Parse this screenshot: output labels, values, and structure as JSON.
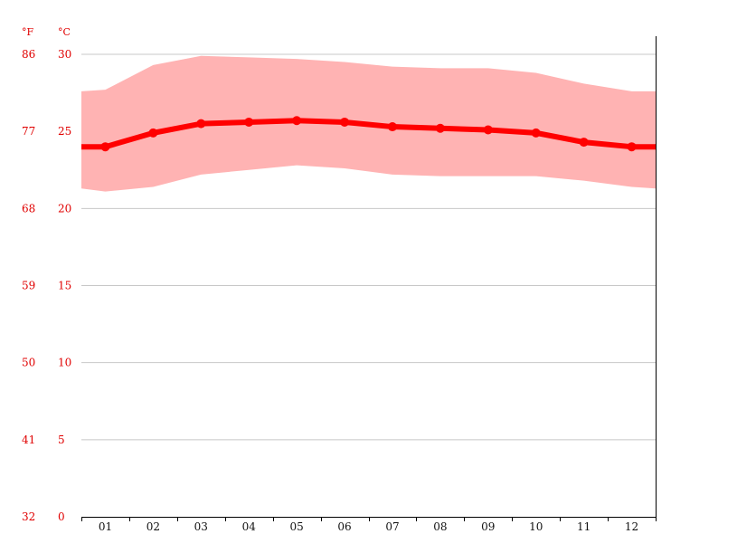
{
  "chart_data": {
    "type": "area",
    "title": "",
    "xlabel": "",
    "ylabel": "",
    "units": {
      "fahrenheit": "°F",
      "celsius": "°C"
    },
    "categories": [
      "01",
      "02",
      "03",
      "04",
      "05",
      "06",
      "07",
      "08",
      "09",
      "10",
      "11",
      "12"
    ],
    "y_celsius_ticks": [
      "0",
      "5",
      "10",
      "15",
      "20",
      "25",
      "30"
    ],
    "y_fahrenheit_ticks": [
      "32",
      "41",
      "50",
      "59",
      "68",
      "77",
      "86"
    ],
    "ylim": [
      0,
      30
    ],
    "grid": true,
    "legend": "none",
    "colors": {
      "mean": "#ff0000",
      "range": "#ffb3b3",
      "labels": "#e00000"
    },
    "series": [
      {
        "values": [
          24.0,
          24.9,
          25.5,
          25.6,
          25.7,
          25.6,
          25.3,
          25.2,
          25.1,
          24.9,
          24.3,
          24.0
        ]
      },
      {
        "values": [
          27.7,
          29.3,
          29.9,
          29.8,
          29.7,
          29.5,
          29.2,
          29.1,
          29.1,
          28.8,
          28.1,
          27.6
        ]
      },
      {
        "values": [
          21.1,
          21.4,
          22.2,
          22.5,
          22.8,
          22.6,
          22.2,
          22.1,
          22.1,
          22.1,
          21.8,
          21.4
        ]
      }
    ],
    "band_edges": {
      "start": [
        27.6,
        21.3
      ],
      "end": [
        27.6,
        21.3
      ],
      "mean_start": 24.0,
      "mean_end": 24.0
    }
  }
}
